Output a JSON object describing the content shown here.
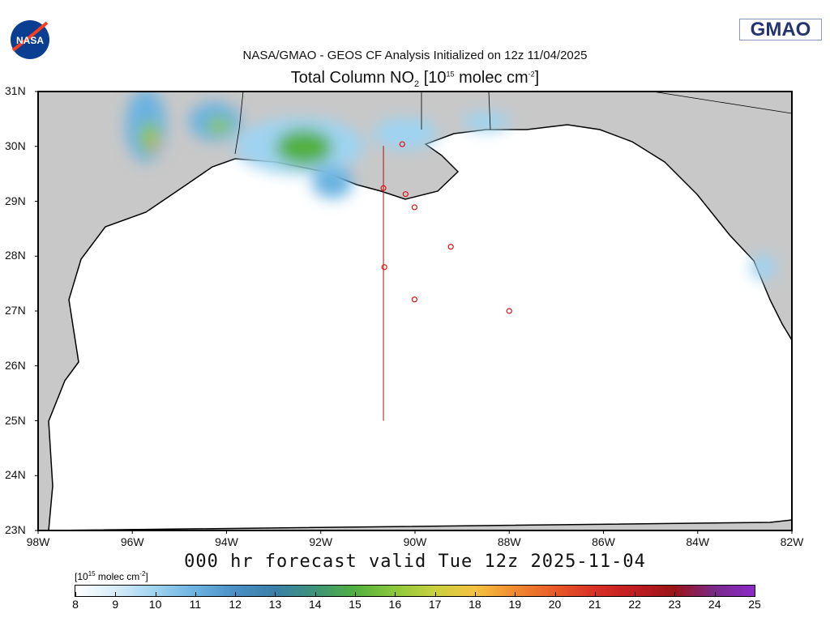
{
  "header": {
    "logo_left": "NASA",
    "logo_right": "GMAO",
    "subtitle": "NASA/GMAO - GEOS CF Analysis Initialized on 12z 11/04/2025",
    "title_main": "Total Column NO",
    "title_sub": "2",
    "title_units_open": " [10",
    "title_exp": "15",
    "title_units_mid": " molec cm",
    "title_exp2": "-2",
    "title_close": "]"
  },
  "map": {
    "lat_labels": [
      "31N",
      "30N",
      "29N",
      "28N",
      "27N",
      "26N",
      "25N",
      "24N",
      "23N"
    ],
    "lon_labels": [
      "98W",
      "96W",
      "94W",
      "92W",
      "90W",
      "88W",
      "86W",
      "84W",
      "82W"
    ],
    "extent": {
      "lon": [
        -98,
        -82
      ],
      "lat": [
        23,
        31
      ]
    },
    "colors": {
      "land": "#c8c8c8",
      "water": "#ffffff",
      "coast": "#000000",
      "marker": "#e01010"
    },
    "stations": [
      {
        "lon": -90.27,
        "lat": 30.04
      },
      {
        "lon": -90.67,
        "lat": 29.24
      },
      {
        "lon": -90.2,
        "lat": 29.13
      },
      {
        "lon": -90.01,
        "lat": 28.89
      },
      {
        "lon": -89.24,
        "lat": 28.17
      },
      {
        "lon": -90.65,
        "lat": 27.8
      },
      {
        "lon": -90.01,
        "lat": 27.21
      },
      {
        "lon": -88.0,
        "lat": 27.0
      }
    ],
    "transect": {
      "lon": -90.67,
      "lat": [
        25.0,
        30.01
      ]
    }
  },
  "footer": {
    "forecast": "000 hr forecast valid Tue 12z 2025-11-04"
  },
  "colorbar": {
    "unit_open": "[10",
    "unit_exp": "15",
    "unit_mid": " molec cm",
    "unit_exp2": "-2",
    "unit_close": "]",
    "ticks": [
      "8",
      "9",
      "10",
      "11",
      "12",
      "13",
      "14",
      "15",
      "16",
      "17",
      "18",
      "19",
      "20",
      "21",
      "22",
      "23",
      "24",
      "25"
    ],
    "colors": [
      "#ffffff",
      "#d6ecf8",
      "#9fd3f0",
      "#6bb2e0",
      "#4a8fc4",
      "#3a7fa8",
      "#3e9478",
      "#52b040",
      "#8cc83c",
      "#c8d040",
      "#f5c340",
      "#f08a30",
      "#e85a28",
      "#d83024",
      "#c01c22",
      "#9a1418",
      "#7a2a8a",
      "#8a2ac8"
    ]
  }
}
